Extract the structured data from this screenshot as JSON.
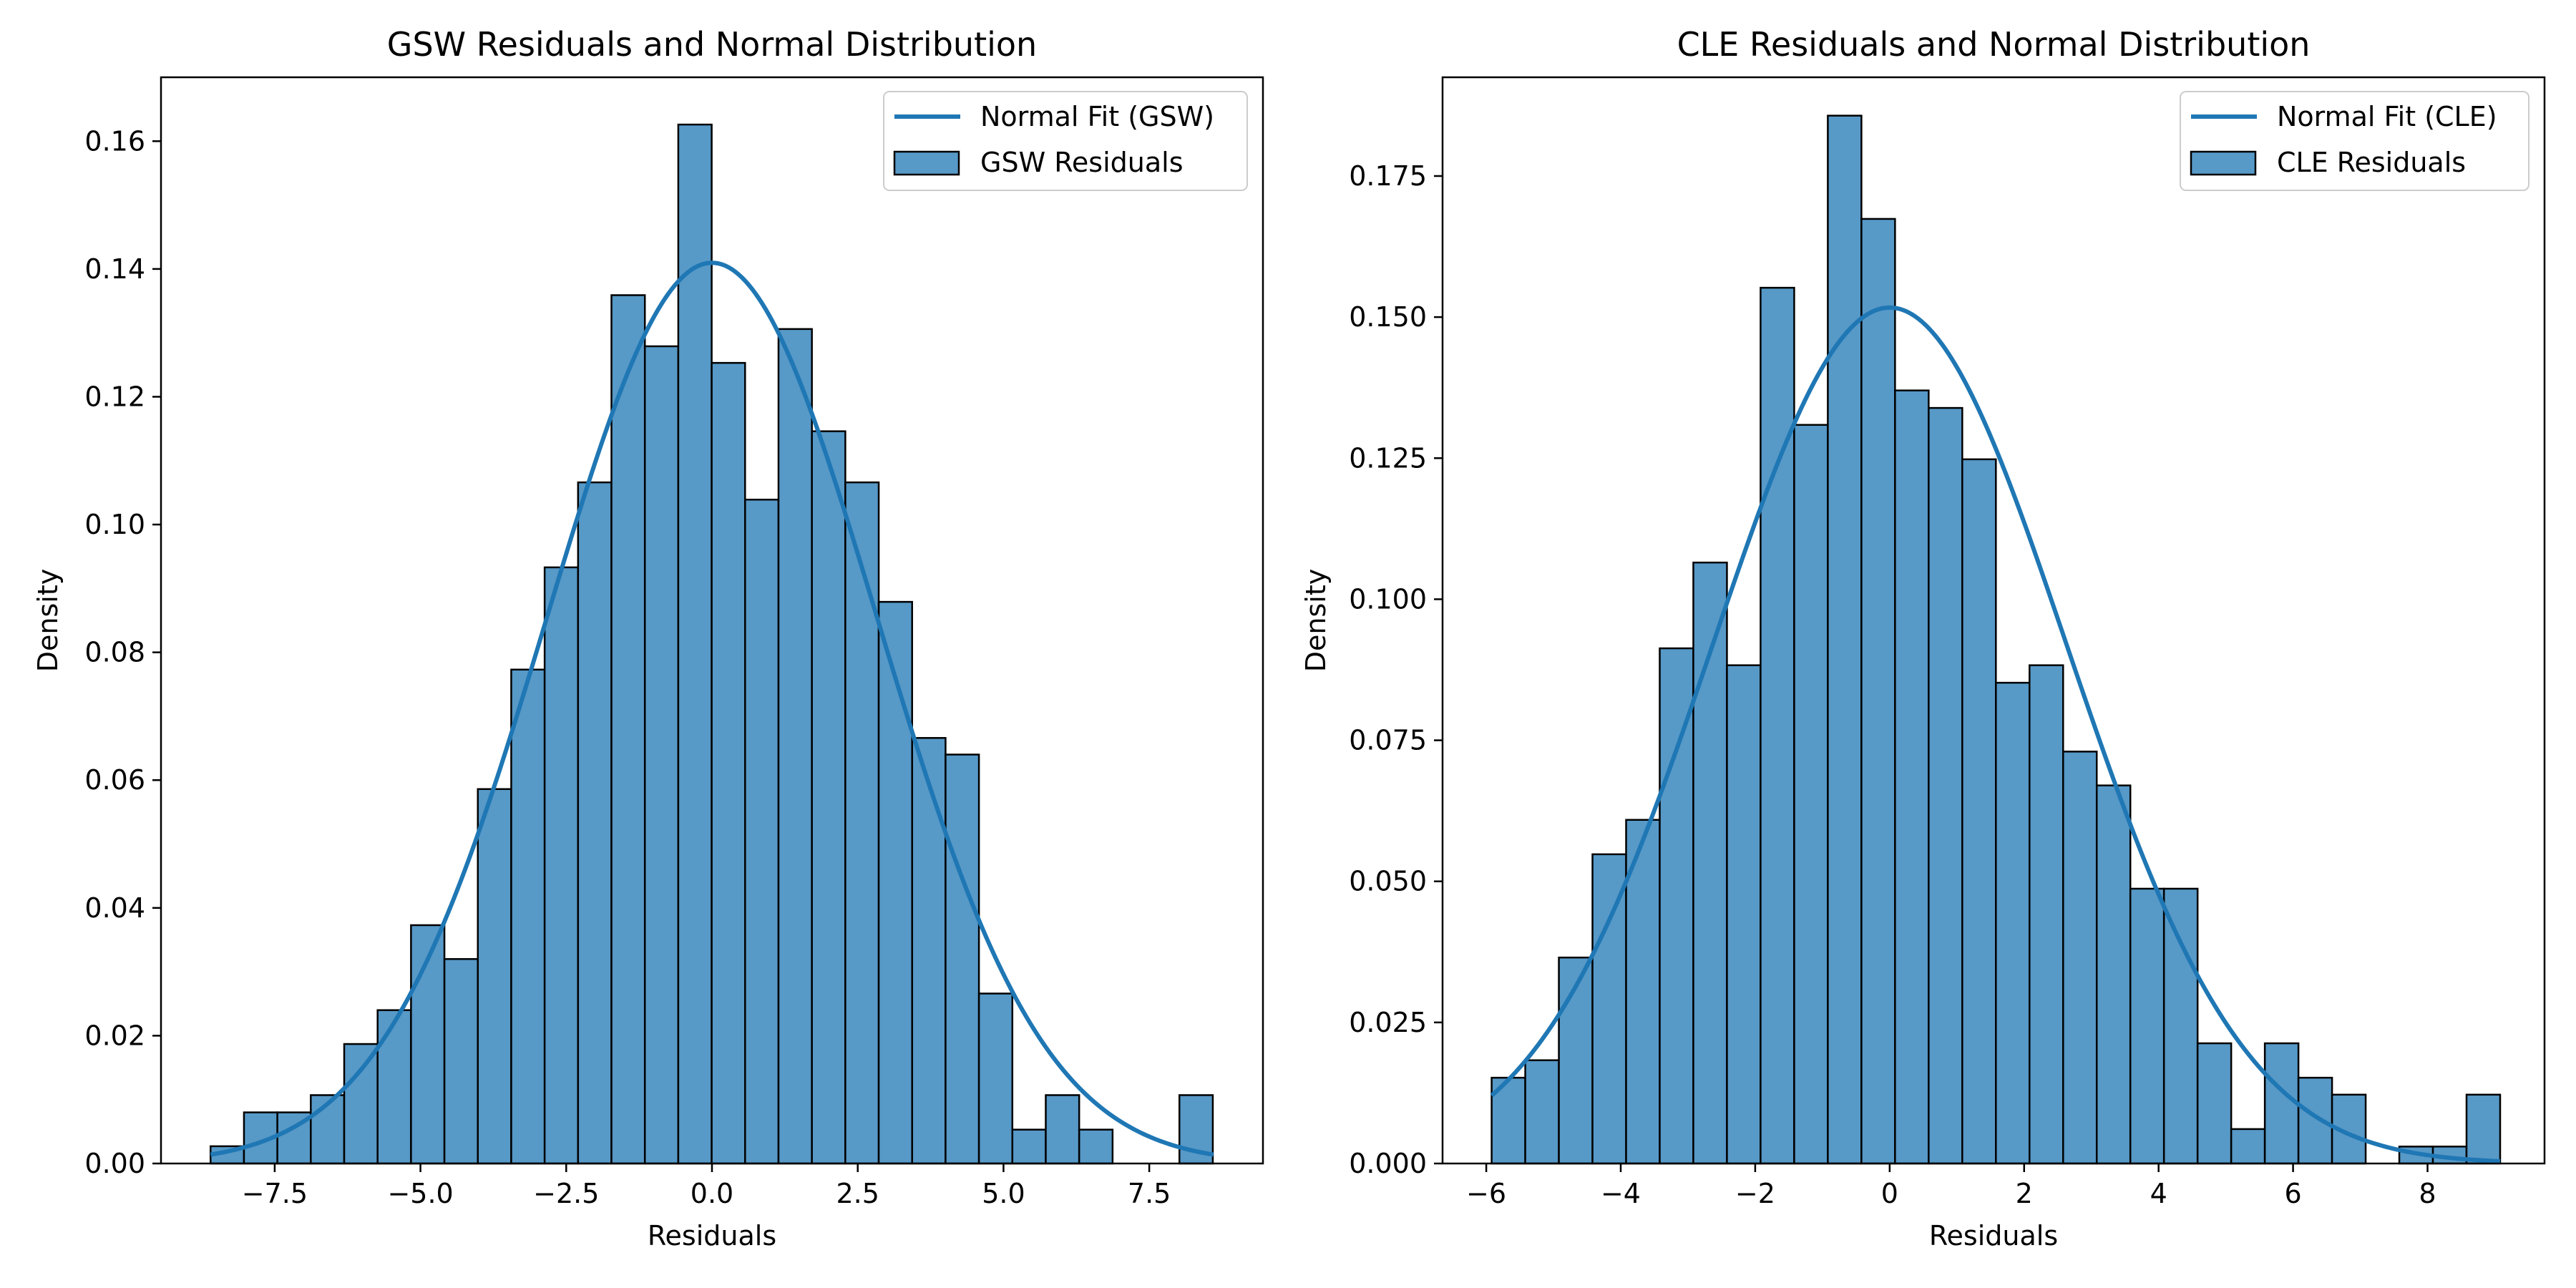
{
  "colors": {
    "bar_fill": "#5799c7",
    "bar_edge": "#000000",
    "line": "#1f77b4",
    "axes": "#000000"
  },
  "chart_data": [
    {
      "type": "histogram",
      "title": "GSW Residuals and Normal Distribution",
      "xlabel": "Residuals",
      "ylabel": "Density",
      "xlim": [
        -9.45,
        9.45
      ],
      "ylim": [
        0,
        0.17
      ],
      "x_ticks": [
        -7.5,
        -5.0,
        -2.5,
        0.0,
        2.5,
        5.0,
        7.5
      ],
      "x_tick_labels": [
        "−7.5",
        "−5.0",
        "−2.5",
        "0.0",
        "2.5",
        "5.0",
        "7.5"
      ],
      "y_ticks": [
        0,
        0.02,
        0.04,
        0.06,
        0.08,
        0.1,
        0.12,
        0.14,
        0.16
      ],
      "y_tick_labels": [
        "0.00",
        "0.02",
        "0.04",
        "0.06",
        "0.08",
        "0.10",
        "0.12",
        "0.14",
        "0.16"
      ],
      "bins_start": -8.6,
      "bin_width": 0.573,
      "bar_values": [
        0.0027,
        0.008,
        0.008,
        0.0107,
        0.0187,
        0.024,
        0.0373,
        0.032,
        0.0586,
        0.0773,
        0.0933,
        0.1066,
        0.1359,
        0.1279,
        0.1626,
        0.1253,
        0.1039,
        0.1306,
        0.1146,
        0.1066,
        0.0879,
        0.0666,
        0.064,
        0.0266,
        0.0053,
        0.0107,
        0.0053,
        0.0,
        0.0,
        0.0107
      ],
      "normal_fit": {
        "mean": 0.0,
        "std": 2.83,
        "x_range": [
          -8.6,
          8.6
        ]
      },
      "legend": {
        "location": "upper right",
        "entries": [
          "Normal Fit (GSW)",
          "GSW Residuals"
        ]
      }
    },
    {
      "type": "histogram",
      "title": "CLE Residuals and Normal Distribution",
      "xlabel": "Residuals",
      "ylabel": "Density",
      "xlim": [
        -6.65,
        9.74
      ],
      "ylim": [
        0,
        0.1925
      ],
      "x_ticks": [
        -6,
        -4,
        -2,
        0,
        2,
        4,
        6,
        8
      ],
      "x_tick_labels": [
        "−6",
        "−4",
        "−2",
        "0",
        "2",
        "4",
        "6",
        "8"
      ],
      "y_ticks": [
        0,
        0.025,
        0.05,
        0.075,
        0.1,
        0.125,
        0.15,
        0.175
      ],
      "y_tick_labels": [
        "0.000",
        "0.025",
        "0.050",
        "0.075",
        "0.100",
        "0.125",
        "0.150",
        "0.175"
      ],
      "bins_start": -5.92,
      "bin_width": 0.5,
      "bar_values": [
        0.0152,
        0.0183,
        0.0365,
        0.0548,
        0.0609,
        0.0913,
        0.1065,
        0.0883,
        0.1552,
        0.1309,
        0.1857,
        0.1674,
        0.137,
        0.1339,
        0.1248,
        0.0852,
        0.0883,
        0.073,
        0.067,
        0.0487,
        0.0487,
        0.0213,
        0.0061,
        0.0213,
        0.0152,
        0.0122,
        0.0,
        0.003,
        0.003,
        0.0122
      ],
      "normal_fit": {
        "mean": 0.0,
        "std": 2.63,
        "x_range": [
          -5.92,
          9.08
        ]
      },
      "legend": {
        "location": "upper right",
        "entries": [
          "Normal Fit (CLE)",
          "CLE Residuals"
        ]
      }
    }
  ]
}
